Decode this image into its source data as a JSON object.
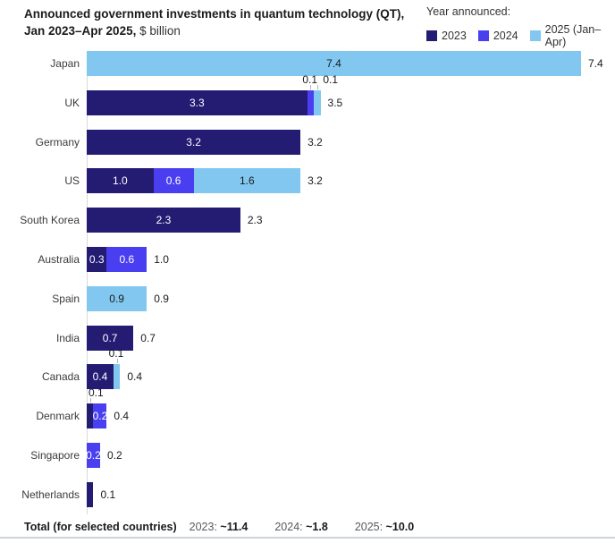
{
  "header": {
    "title_line1": "Announced government investments in quantum technology (QT),",
    "title_line2_bold": "Jan 2023–Apr 2025,",
    "title_unit": " $ billion",
    "legend_title": "Year announced:"
  },
  "legend": {
    "items": [
      {
        "label": "2023",
        "color": "#241b73"
      },
      {
        "label": "2024",
        "color": "#4a3ff0"
      },
      {
        "label": "2025 (Jan–Apr)",
        "color": "#81c7f0"
      }
    ]
  },
  "chart_data": {
    "type": "bar",
    "orientation": "horizontal-stacked",
    "title": "Announced government investments in quantum technology (QT), Jan 2023–Apr 2025, $ billion",
    "xlabel": "$ billion",
    "xlim": [
      0,
      7.4
    ],
    "grid": false,
    "legend_position": "top-right",
    "categories": [
      "Japan",
      "UK",
      "Germany",
      "US",
      "South Korea",
      "Australia",
      "Spain",
      "India",
      "Canada",
      "Denmark",
      "Singapore",
      "Netherlands"
    ],
    "series": [
      {
        "name": "2023",
        "color": "#241b73",
        "values": [
          0,
          3.3,
          3.2,
          1.0,
          2.3,
          0.3,
          0,
          0.7,
          0.4,
          0.1,
          0,
          0.1
        ]
      },
      {
        "name": "2024",
        "color": "#4a3ff0",
        "values": [
          0,
          0.1,
          0,
          0.6,
          0,
          0.6,
          0,
          0,
          0,
          0.2,
          0.2,
          0
        ]
      },
      {
        "name": "2025 (Jan–Apr)",
        "color": "#81c7f0",
        "values": [
          7.4,
          0.1,
          0,
          1.6,
          0,
          0,
          0.9,
          0,
          0.1,
          0,
          0,
          0
        ]
      }
    ],
    "rows": [
      {
        "country": "Japan",
        "total": "7.4",
        "segments": [
          {
            "series": "2025 (Jan–Apr)",
            "value": 7.4,
            "label": "7.4"
          }
        ]
      },
      {
        "country": "UK",
        "total": "3.5",
        "segments": [
          {
            "series": "2023",
            "value": 3.3,
            "label": "3.3"
          },
          {
            "series": "2024",
            "value": 0.1,
            "callout": "0.1"
          },
          {
            "series": "2025 (Jan–Apr)",
            "value": 0.1,
            "callout": "0.1"
          }
        ]
      },
      {
        "country": "Germany",
        "total": "3.2",
        "segments": [
          {
            "series": "2023",
            "value": 3.2,
            "label": "3.2"
          }
        ]
      },
      {
        "country": "US",
        "total": "3.2",
        "segments": [
          {
            "series": "2023",
            "value": 1.0,
            "label": "1.0"
          },
          {
            "series": "2024",
            "value": 0.6,
            "label": "0.6"
          },
          {
            "series": "2025 (Jan–Apr)",
            "value": 1.6,
            "label": "1.6"
          }
        ]
      },
      {
        "country": "South Korea",
        "total": "2.3",
        "segments": [
          {
            "series": "2023",
            "value": 2.3,
            "label": "2.3"
          }
        ]
      },
      {
        "country": "Australia",
        "total": "1.0",
        "segments": [
          {
            "series": "2023",
            "value": 0.3,
            "label": "0.3"
          },
          {
            "series": "2024",
            "value": 0.6,
            "label": "0.6"
          }
        ]
      },
      {
        "country": "Spain",
        "total": "0.9",
        "segments": [
          {
            "series": "2025 (Jan–Apr)",
            "value": 0.9,
            "label": "0.9"
          }
        ]
      },
      {
        "country": "India",
        "total": "0.7",
        "segments": [
          {
            "series": "2023",
            "value": 0.7,
            "label": "0.7"
          }
        ]
      },
      {
        "country": "Canada",
        "total": "0.4",
        "segments": [
          {
            "series": "2023",
            "value": 0.4,
            "label": "0.4"
          },
          {
            "series": "2025 (Jan–Apr)",
            "value": 0.1,
            "callout": "0.1"
          }
        ]
      },
      {
        "country": "Denmark",
        "total": "0.4",
        "segments": [
          {
            "series": "2023",
            "value": 0.1,
            "callout": "0.1"
          },
          {
            "series": "2024",
            "value": 0.2,
            "label": "0.2"
          }
        ]
      },
      {
        "country": "Singapore",
        "total": "0.2",
        "segments": [
          {
            "series": "2024",
            "value": 0.2,
            "label": "0.2"
          }
        ]
      },
      {
        "country": "Netherlands",
        "total": "0.1",
        "segments": [
          {
            "series": "2023",
            "value": 0.1
          }
        ]
      }
    ]
  },
  "footer": {
    "label": "Total (for selected countries)",
    "items": [
      {
        "year": "2023:",
        "value": "~11.4"
      },
      {
        "year": "2024:",
        "value": "~1.8"
      },
      {
        "year": "2025:",
        "value": "~10.0"
      }
    ]
  }
}
